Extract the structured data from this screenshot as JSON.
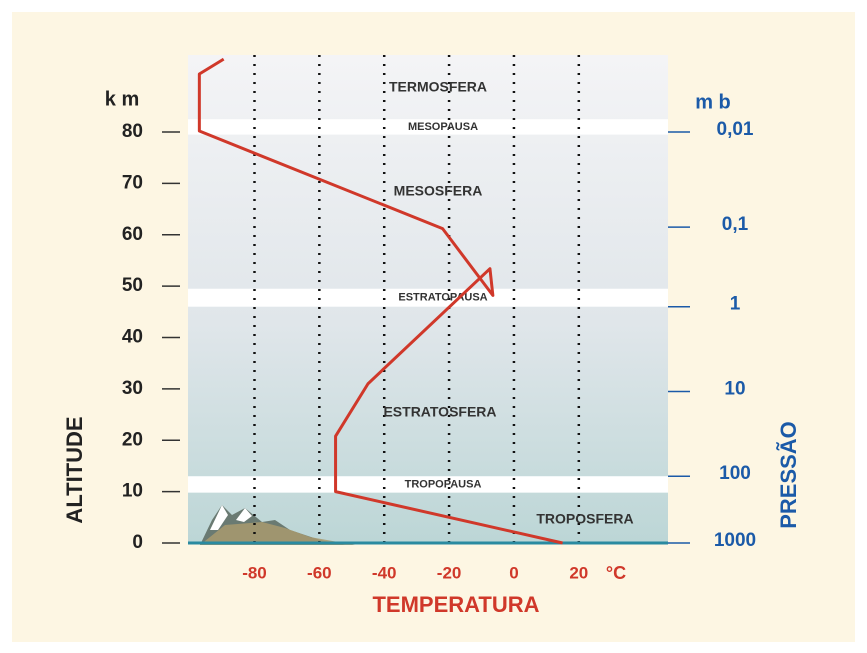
{
  "chart_data": {
    "type": "line",
    "x_label": "TEMPERATURA",
    "x_unit": "°C",
    "y_label": "ALTITUDE",
    "y_unit": "k m",
    "y2_label": "PRESSÃO",
    "y2_unit": "m b",
    "x": [
      15,
      -55,
      -55,
      -45,
      -7.4,
      -6.5,
      -22,
      -97,
      -97,
      -89.5
    ],
    "values": [
      0,
      10,
      20.8,
      31,
      53.4,
      48.2,
      61.2,
      80.2,
      91.3,
      94.2
    ],
    "color": "#d0382a",
    "xlim": [
      -100.5,
      47.5
    ],
    "xticks": [
      -80,
      -60,
      -40,
      -20,
      0,
      20
    ],
    "ylim": [
      0,
      95
    ],
    "yticks": [
      0,
      10,
      20,
      30,
      40,
      50,
      60,
      70,
      80
    ],
    "pressure_ticks": [
      {
        "value": 0.01,
        "label": "0,01",
        "altitude": 80
      },
      {
        "value": 0.1,
        "label": "0,1",
        "altitude": 61.5
      },
      {
        "value": 1,
        "label": "1",
        "altitude": 46
      },
      {
        "value": 10,
        "label": "10",
        "altitude": 29.5
      },
      {
        "value": 100,
        "label": "100",
        "altitude": 13
      },
      {
        "value": 1000,
        "label": "1000",
        "altitude": 0
      }
    ],
    "grid": true,
    "bands": [
      {
        "label": "MESOPAUSA",
        "range": [
          79.5,
          82.5
        ]
      },
      {
        "label": "ESTRATOPAUSA",
        "range": [
          46,
          49.5
        ]
      },
      {
        "label": "TROPOPAUSA",
        "range": [
          9.8,
          13
        ]
      }
    ],
    "layers": [
      {
        "label": "TERMOSFERA"
      },
      {
        "label": "MESOSFERA"
      },
      {
        "label": "ESTRATOSFERA"
      },
      {
        "label": "TROPOSFERA"
      }
    ]
  }
}
